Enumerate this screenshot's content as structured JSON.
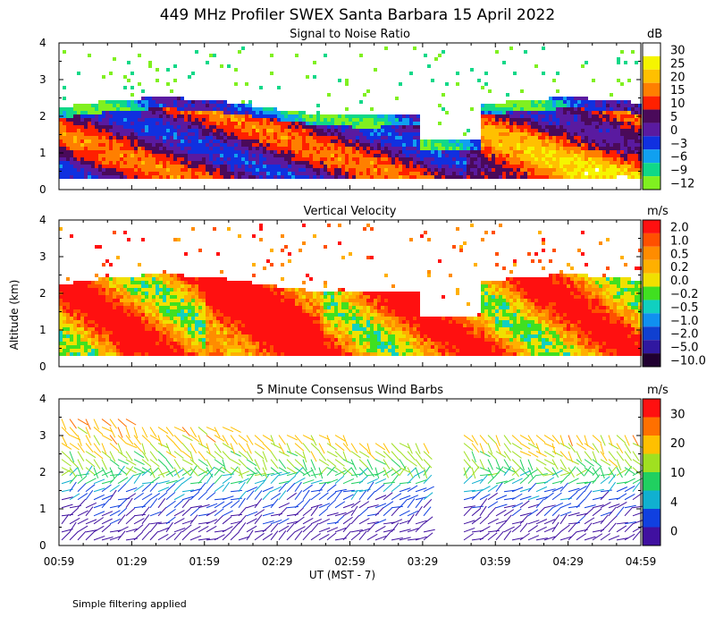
{
  "title": "449 MHz Profiler SWEX Santa Barbara 15 April 2022",
  "footnote": "Simple filtering applied",
  "y_axis_label": "Altitude (km)",
  "x_axis_label": "UT  (MST - 7)",
  "x_ticks": [
    "00:59",
    "01:29",
    "01:59",
    "02:29",
    "02:59",
    "03:29",
    "03:59",
    "04:29",
    "04:59"
  ],
  "y_ticks": [
    "0",
    "1",
    "2",
    "3",
    "4"
  ],
  "chart_data": [
    {
      "type": "heatmap",
      "title": "Signal to Noise Ratio",
      "unit": "dB",
      "ylim": [
        0,
        4
      ],
      "colorbar": {
        "labels": [
          "30",
          "25",
          "20",
          "15",
          "10",
          "5",
          "0",
          "−3",
          "−6",
          "−9",
          "−12"
        ],
        "colors": [
          "#ffffff",
          "#f5f500",
          "#ffc000",
          "#ff7f00",
          "#ff2000",
          "#4a0a5a",
          "#5a1aa0",
          "#1030e0",
          "#10a0f0",
          "#10d888",
          "#80f020"
        ]
      }
    },
    {
      "type": "heatmap",
      "title": "Vertical Velocity",
      "unit": "m/s",
      "ylim": [
        0,
        4
      ],
      "colorbar": {
        "labels": [
          "2.0",
          "1.0",
          "0.5",
          "0.2",
          "0.0",
          "−0.2",
          "−0.5",
          "−1.0",
          "−2.0",
          "−5.0",
          "−10.0"
        ],
        "colors": [
          "#ff1010",
          "#ff5000",
          "#ff8c00",
          "#ffb000",
          "#f0e000",
          "#40e020",
          "#10d0c0",
          "#1090f0",
          "#1040d0",
          "#3018a0",
          "#200030"
        ]
      }
    },
    {
      "type": "scatter",
      "title": "5 Minute Consensus Wind Barbs",
      "unit": "m/s",
      "ylim": [
        0,
        4
      ],
      "colorbar": {
        "labels": [
          "30",
          "20",
          "10",
          "4",
          "0"
        ],
        "colors": [
          "#ff1010",
          "#ff7000",
          "#ffc000",
          "#a0e020",
          "#20d060",
          "#10b0d0",
          "#1040e0",
          "#4010a0"
        ]
      }
    }
  ]
}
